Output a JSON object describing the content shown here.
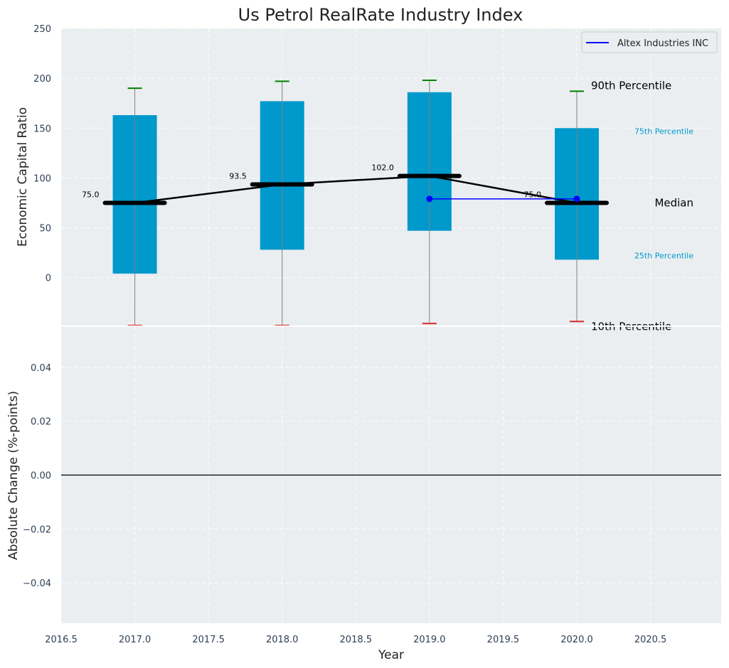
{
  "chart_data": [
    {
      "type": "box",
      "title": "Us Petrol RealRate Industry Index",
      "ylabel": "Economic Capital Ratio",
      "xlabel": "",
      "ylim": [
        -48,
        250
      ],
      "xlim": [
        2016.5,
        2020.98
      ],
      "yticks": [
        0,
        50,
        100,
        150,
        200,
        250
      ],
      "grid": true,
      "legend": {
        "position": "top-right",
        "entries": [
          {
            "label": "Altex Industries INC",
            "color": "#0000ff"
          }
        ]
      },
      "colors": {
        "box": "#0099cc",
        "median": "#000000",
        "company": "#0000ff",
        "p90_cap": "#008000",
        "p10_cap": "#d62728",
        "whisker": "#808080"
      },
      "boxes": [
        {
          "x": 2017.0,
          "p10": -48,
          "p25": 4,
          "median": 75.0,
          "p75": 163,
          "p90": 190,
          "median_label": "75.0"
        },
        {
          "x": 2018.0,
          "p10": -48,
          "p25": 28,
          "median": 93.5,
          "p75": 177,
          "p90": 197,
          "median_label": "93.5"
        },
        {
          "x": 2019.0,
          "p10": -46,
          "p25": 47,
          "median": 102.0,
          "p75": 186,
          "p90": 198,
          "median_label": "102.0"
        },
        {
          "x": 2020.0,
          "p10": -44,
          "p25": 18,
          "median": 75.0,
          "p75": 150,
          "p90": 187,
          "median_label": "75.0"
        }
      ],
      "company_series": {
        "name": "Altex Industries INC",
        "x": [
          2019.0,
          2020.0
        ],
        "y": [
          79,
          79
        ]
      },
      "annotations": {
        "p90": "90th Percentile",
        "p75": "75th Percentile",
        "median": "Median",
        "p25": "25th Percentile",
        "p10": "10th Percentile"
      }
    },
    {
      "type": "line",
      "ylabel": "Absolute Change (%-points)",
      "xlabel": "Year",
      "ylim": [
        -0.055,
        0.055
      ],
      "xlim": [
        2016.5,
        2020.98
      ],
      "yticks": [
        -0.04,
        -0.02,
        0.0,
        0.02,
        0.04
      ],
      "ytick_labels": [
        "−0.04",
        "−0.02",
        "0.00",
        "0.02",
        "0.04"
      ],
      "xticks": [
        2016.5,
        2017.0,
        2017.5,
        2018.0,
        2018.5,
        2019.0,
        2019.5,
        2020.0,
        2020.5
      ],
      "xtick_labels": [
        "2016.5",
        "2017.0",
        "2017.5",
        "2018.0",
        "2018.5",
        "2019.0",
        "2019.5",
        "2020.0",
        "2020.5"
      ],
      "zero_line": true,
      "grid": true
    }
  ]
}
